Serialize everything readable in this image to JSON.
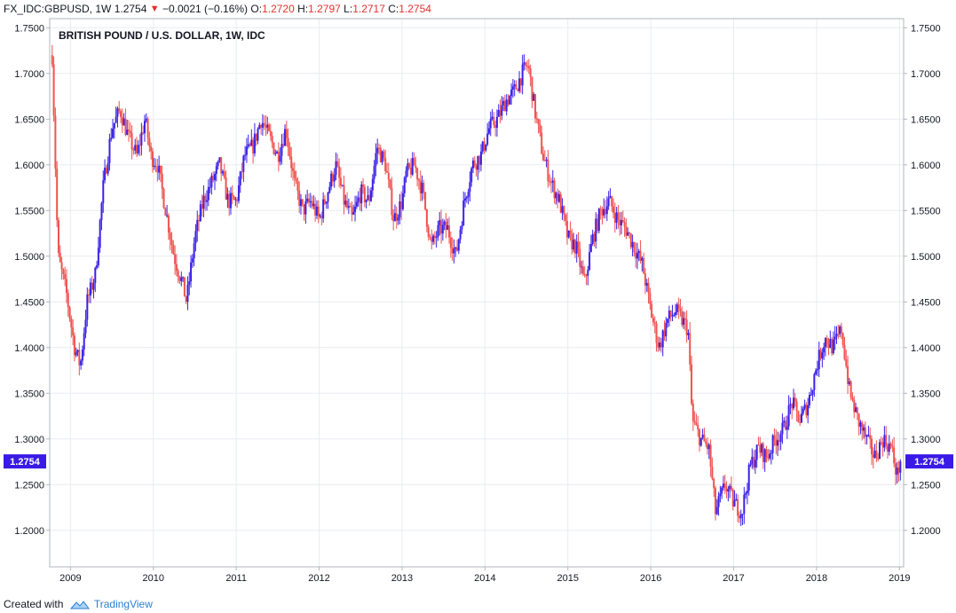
{
  "header": {
    "symbol": "FX_IDC:GBPUSD, 1W",
    "last": "1.2754",
    "change": "−0.0021 (−0.16%)",
    "open_label": "O:",
    "open": "1.2720",
    "high_label": "H:",
    "high": "1.2797",
    "low_label": "L:",
    "low": "1.2717",
    "close_label": "C:",
    "close": "1.2754"
  },
  "footer": {
    "created_with": "Created with",
    "brand": "TradingView"
  },
  "colors": {
    "up": "#3a21e6",
    "down": "#ef5350",
    "label_bg": "#3a1ae6",
    "grid": "#e8ecf0"
  },
  "chart_data": {
    "type": "candlestick",
    "title": "BRITISH POUND / U.S. DOLLAR, 1W, IDC",
    "xlabel": "",
    "ylabel": "",
    "ylim": [
      1.16,
      1.76
    ],
    "y_ticks": [
      "1.2000",
      "1.2500",
      "1.3000",
      "1.3500",
      "1.4000",
      "1.4500",
      "1.5000",
      "1.5500",
      "1.6000",
      "1.6500",
      "1.7000",
      "1.7500"
    ],
    "x_ticks": [
      "2009",
      "2010",
      "2011",
      "2012",
      "2013",
      "2014",
      "2015",
      "2016",
      "2017",
      "2018",
      "2019"
    ],
    "x_range": [
      2008.75,
      2019.05
    ],
    "last_price_label": "1.2754",
    "last_price": 1.2754,
    "grid": true,
    "axes": "both sides",
    "trend": [
      [
        2008.78,
        1.72
      ],
      [
        2008.85,
        1.5
      ],
      [
        2008.95,
        1.46
      ],
      [
        2009.05,
        1.4
      ],
      [
        2009.12,
        1.38
      ],
      [
        2009.2,
        1.45
      ],
      [
        2009.3,
        1.48
      ],
      [
        2009.4,
        1.58
      ],
      [
        2009.5,
        1.64
      ],
      [
        2009.6,
        1.66
      ],
      [
        2009.7,
        1.63
      ],
      [
        2009.8,
        1.61
      ],
      [
        2009.9,
        1.65
      ],
      [
        2009.97,
        1.61
      ],
      [
        2010.05,
        1.6
      ],
      [
        2010.15,
        1.55
      ],
      [
        2010.25,
        1.5
      ],
      [
        2010.35,
        1.47
      ],
      [
        2010.4,
        1.45
      ],
      [
        2010.5,
        1.52
      ],
      [
        2010.6,
        1.56
      ],
      [
        2010.7,
        1.58
      ],
      [
        2010.8,
        1.6
      ],
      [
        2010.9,
        1.56
      ],
      [
        2011.0,
        1.56
      ],
      [
        2011.1,
        1.61
      ],
      [
        2011.2,
        1.62
      ],
      [
        2011.3,
        1.65
      ],
      [
        2011.4,
        1.63
      ],
      [
        2011.5,
        1.61
      ],
      [
        2011.6,
        1.64
      ],
      [
        2011.7,
        1.58
      ],
      [
        2011.8,
        1.55
      ],
      [
        2011.9,
        1.56
      ],
      [
        2012.0,
        1.54
      ],
      [
        2012.1,
        1.57
      ],
      [
        2012.2,
        1.6
      ],
      [
        2012.3,
        1.56
      ],
      [
        2012.4,
        1.54
      ],
      [
        2012.5,
        1.57
      ],
      [
        2012.6,
        1.56
      ],
      [
        2012.7,
        1.62
      ],
      [
        2012.8,
        1.6
      ],
      [
        2012.9,
        1.54
      ],
      [
        2013.0,
        1.56
      ],
      [
        2013.05,
        1.59
      ],
      [
        2013.15,
        1.6
      ],
      [
        2013.25,
        1.57
      ],
      [
        2013.35,
        1.51
      ],
      [
        2013.45,
        1.53
      ],
      [
        2013.55,
        1.53
      ],
      [
        2013.65,
        1.5
      ],
      [
        2013.75,
        1.56
      ],
      [
        2013.85,
        1.6
      ],
      [
        2013.95,
        1.61
      ],
      [
        2014.05,
        1.64
      ],
      [
        2014.15,
        1.65
      ],
      [
        2014.25,
        1.67
      ],
      [
        2014.35,
        1.68
      ],
      [
        2014.45,
        1.7
      ],
      [
        2014.52,
        1.71
      ],
      [
        2014.6,
        1.66
      ],
      [
        2014.7,
        1.61
      ],
      [
        2014.8,
        1.58
      ],
      [
        2014.9,
        1.56
      ],
      [
        2015.0,
        1.52
      ],
      [
        2015.1,
        1.51
      ],
      [
        2015.2,
        1.47
      ],
      [
        2015.3,
        1.52
      ],
      [
        2015.4,
        1.55
      ],
      [
        2015.5,
        1.56
      ],
      [
        2015.6,
        1.54
      ],
      [
        2015.7,
        1.53
      ],
      [
        2015.8,
        1.51
      ],
      [
        2015.9,
        1.49
      ],
      [
        2016.0,
        1.44
      ],
      [
        2016.1,
        1.4
      ],
      [
        2016.2,
        1.43
      ],
      [
        2016.3,
        1.44
      ],
      [
        2016.45,
        1.42
      ],
      [
        2016.5,
        1.32
      ],
      [
        2016.6,
        1.3
      ],
      [
        2016.7,
        1.29
      ],
      [
        2016.78,
        1.22
      ],
      [
        2016.9,
        1.25
      ],
      [
        2017.0,
        1.23
      ],
      [
        2017.1,
        1.22
      ],
      [
        2017.2,
        1.27
      ],
      [
        2017.3,
        1.29
      ],
      [
        2017.4,
        1.28
      ],
      [
        2017.5,
        1.3
      ],
      [
        2017.6,
        1.31
      ],
      [
        2017.7,
        1.34
      ],
      [
        2017.8,
        1.32
      ],
      [
        2017.9,
        1.34
      ],
      [
        2018.0,
        1.38
      ],
      [
        2018.1,
        1.41
      ],
      [
        2018.2,
        1.4
      ],
      [
        2018.3,
        1.42
      ],
      [
        2018.4,
        1.35
      ],
      [
        2018.5,
        1.32
      ],
      [
        2018.6,
        1.3
      ],
      [
        2018.7,
        1.28
      ],
      [
        2018.8,
        1.3
      ],
      [
        2018.9,
        1.29
      ],
      [
        2018.97,
        1.26
      ],
      [
        2019.01,
        1.2754
      ]
    ]
  }
}
